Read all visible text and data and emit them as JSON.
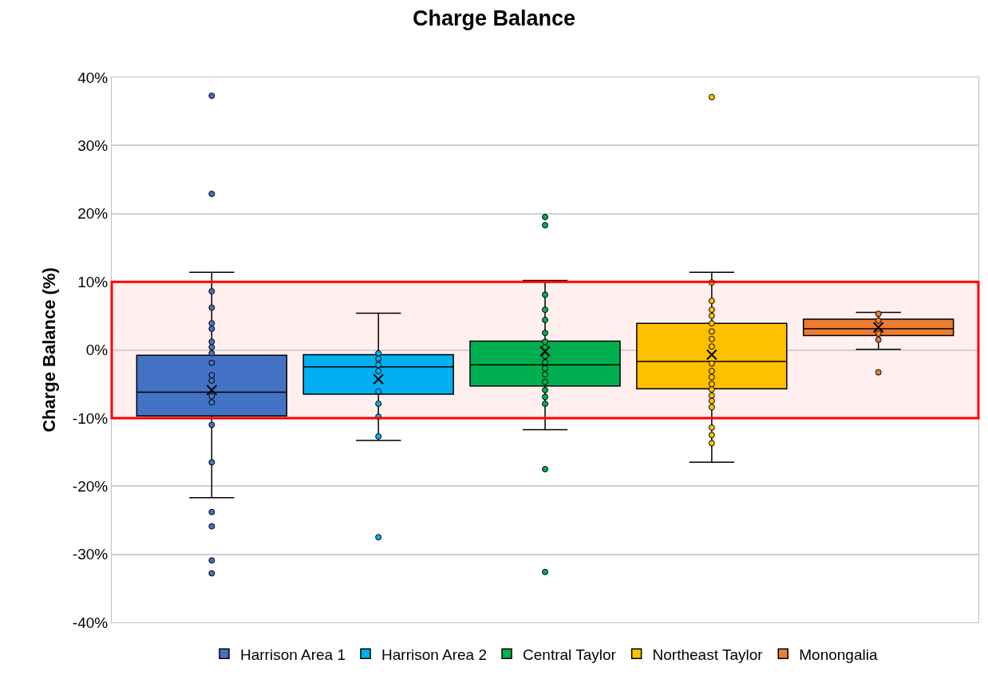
{
  "chart_data": {
    "type": "box",
    "title": "Charge Balance",
    "ylabel": "Charge Balance (%)",
    "categories": [
      null
    ],
    "ylim": [
      -40,
      40
    ],
    "yticks": [
      {
        "value": -40,
        "label": "-40%"
      },
      {
        "value": -30,
        "label": "-30%"
      },
      {
        "value": -20,
        "label": "-20%"
      },
      {
        "value": -10,
        "label": "-10%"
      },
      {
        "value": 0,
        "label": "0%"
      },
      {
        "value": 10,
        "label": "10%"
      },
      {
        "value": 20,
        "label": "20%"
      },
      {
        "value": 30,
        "label": "30%"
      },
      {
        "value": 40,
        "label": "40%"
      }
    ],
    "grid": "y",
    "legend": "bottom",
    "marker": "circle",
    "bands": [
      {
        "axis": "y",
        "from": -10,
        "to": 10,
        "color": "#ff0000"
      }
    ],
    "series": [
      {
        "name": "Harrison Area 1",
        "color": "#4472c4",
        "boxes": [
          {
            "low": -21.7,
            "q1": -9.7,
            "median": -6.2,
            "q3": -0.8,
            "high": 11.4,
            "mean": -5.9,
            "outliers": [
              37.3,
              22.9,
              -23.8,
              -25.9,
              -30.9,
              -32.8
            ]
          }
        ]
      },
      {
        "type": "scatter",
        "color": "#4472c4",
        "x": [
          null,
          null,
          null,
          null,
          null,
          null,
          null,
          null,
          null,
          null,
          null,
          null,
          null,
          null
        ],
        "values": [
          8.6,
          6.2,
          3.9,
          3.1,
          1.2,
          0.4,
          -0.5,
          -1.9,
          -3.7,
          -4.5,
          -6.8,
          -7.7,
          -11.0,
          -16.5
        ]
      },
      {
        "name": "Harrison Area 2",
        "color": "#00b0f0",
        "boxes": [
          {
            "low": -13.3,
            "q1": -6.5,
            "median": -2.5,
            "q3": -0.7,
            "high": 5.4,
            "mean": -4.3,
            "outliers": [
              -27.5
            ]
          }
        ]
      },
      {
        "type": "scatter",
        "color": "#00b0f0",
        "x": [
          null,
          null,
          null,
          null,
          null,
          null,
          null,
          null
        ],
        "values": [
          -0.5,
          -1.3,
          -2.2,
          -3.1,
          -6.1,
          -7.9,
          -9.8,
          -12.7
        ]
      },
      {
        "name": "Central Taylor",
        "color": "#00b050",
        "boxes": [
          {
            "low": -11.7,
            "q1": -5.3,
            "median": -2.2,
            "q3": 1.3,
            "high": 10.2,
            "mean": -0.2,
            "outliers": [
              19.5,
              18.3,
              -17.5,
              -32.6
            ]
          }
        ]
      },
      {
        "type": "scatter",
        "color": "#00b050",
        "x": [
          null,
          null,
          null,
          null,
          null,
          null,
          null,
          null,
          null,
          null,
          null,
          null,
          null,
          null
        ],
        "values": [
          8.1,
          5.9,
          4.4,
          2.5,
          1.2,
          0.4,
          -0.9,
          -1.8,
          -2.7,
          -3.6,
          -4.7,
          -5.9,
          -6.9,
          -7.9
        ]
      },
      {
        "name": "Northeast Taylor",
        "color": "#ffc000",
        "boxes": [
          {
            "low": -16.5,
            "q1": -5.7,
            "median": -1.7,
            "q3": 3.9,
            "high": 11.4,
            "mean": -0.7,
            "outliers": [
              37.1
            ]
          }
        ]
      },
      {
        "type": "scatter",
        "color": "#ffc000",
        "x": [
          null,
          null,
          null,
          null,
          null,
          null,
          null,
          null,
          null,
          null,
          null,
          null,
          null,
          null,
          null,
          null,
          null,
          null,
          null
        ],
        "values": [
          9.9,
          7.2,
          5.9,
          5.0,
          3.9,
          2.7,
          1.6,
          0.5,
          -2.0,
          -3.1,
          -4.0,
          -5.0,
          -5.8,
          -6.7,
          -7.5,
          -8.4,
          -11.4,
          -12.5,
          -13.7
        ]
      },
      {
        "name": "Monongalia",
        "color": "#ed7d31",
        "boxes": [
          {
            "low": 0.1,
            "q1": 2.1,
            "median": 3.1,
            "q3": 4.5,
            "high": 5.5,
            "mean": 3.3,
            "outliers": [
              -3.3
            ]
          }
        ]
      },
      {
        "type": "scatter",
        "color": "#ed7d31",
        "x": [
          null,
          null,
          null,
          null
        ],
        "values": [
          5.3,
          4.3,
          2.4,
          1.5
        ]
      }
    ]
  }
}
